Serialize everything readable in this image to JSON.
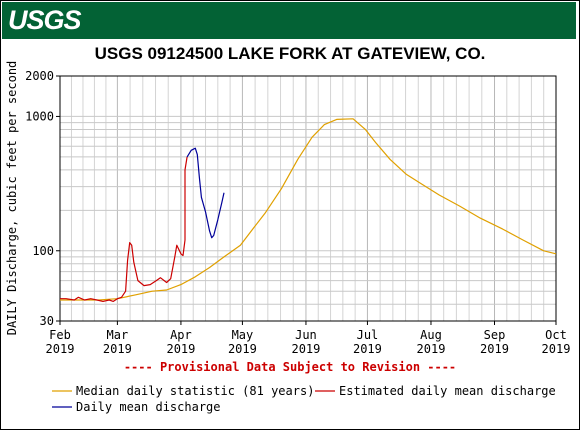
{
  "header": {
    "logo_text": "USGS",
    "brand_color": "#036235"
  },
  "chart_data": {
    "type": "line",
    "title": "USGS 09124500 LAKE FORK AT GATEVIEW, CO.",
    "ylabel": "DAILY Discharge, cubic feet per second",
    "xlabel": "",
    "yscale": "log",
    "ylim": [
      30,
      2000
    ],
    "y_ticks": [
      30,
      100,
      1000,
      2000
    ],
    "x_range": [
      "2019-02-01",
      "2019-10-01"
    ],
    "x_ticks": [
      {
        "date": "2019-02-01",
        "month": "Feb",
        "year": "2019"
      },
      {
        "date": "2019-03-01",
        "month": "Mar",
        "year": "2019"
      },
      {
        "date": "2019-04-01",
        "month": "Apr",
        "year": "2019"
      },
      {
        "date": "2019-05-01",
        "month": "May",
        "year": "2019"
      },
      {
        "date": "2019-06-01",
        "month": "Jun",
        "year": "2019"
      },
      {
        "date": "2019-07-01",
        "month": "Jul",
        "year": "2019"
      },
      {
        "date": "2019-08-01",
        "month": "Aug",
        "year": "2019"
      },
      {
        "date": "2019-09-01",
        "month": "Sep",
        "year": "2019"
      },
      {
        "date": "2019-10-01",
        "month": "Oct",
        "year": "2019"
      }
    ],
    "grid": true,
    "annotation": "---- Provisional Data Subject to Revision ----",
    "annotation_color": "#cc0000",
    "series": [
      {
        "name": "Median daily statistic (81 years)",
        "color": "#e0a000",
        "points": [
          [
            "2019-02-01",
            43
          ],
          [
            "2019-02-10",
            43
          ],
          [
            "2019-02-20",
            43
          ],
          [
            "2019-03-01",
            44
          ],
          [
            "2019-03-10",
            47
          ],
          [
            "2019-03-18",
            50
          ],
          [
            "2019-03-25",
            51
          ],
          [
            "2019-04-01",
            56
          ],
          [
            "2019-04-08",
            64
          ],
          [
            "2019-04-15",
            75
          ],
          [
            "2019-04-22",
            90
          ],
          [
            "2019-04-30",
            110
          ],
          [
            "2019-05-06",
            145
          ],
          [
            "2019-05-12",
            190
          ],
          [
            "2019-05-20",
            290
          ],
          [
            "2019-05-28",
            480
          ],
          [
            "2019-06-04",
            700
          ],
          [
            "2019-06-10",
            870
          ],
          [
            "2019-06-16",
            950
          ],
          [
            "2019-06-24",
            960
          ],
          [
            "2019-06-30",
            800
          ],
          [
            "2019-07-05",
            640
          ],
          [
            "2019-07-12",
            480
          ],
          [
            "2019-07-20",
            370
          ],
          [
            "2019-07-28",
            310
          ],
          [
            "2019-08-05",
            260
          ],
          [
            "2019-08-15",
            215
          ],
          [
            "2019-08-25",
            175
          ],
          [
            "2019-09-05",
            145
          ],
          [
            "2019-09-15",
            120
          ],
          [
            "2019-09-25",
            100
          ],
          [
            "2019-10-01",
            95
          ]
        ]
      },
      {
        "name": "Estimated daily mean discharge",
        "color": "#cc0000",
        "points": [
          [
            "2019-02-01",
            44
          ],
          [
            "2019-02-04",
            44
          ],
          [
            "2019-02-08",
            43
          ],
          [
            "2019-02-10",
            45
          ],
          [
            "2019-02-13",
            43
          ],
          [
            "2019-02-16",
            44
          ],
          [
            "2019-02-19",
            43
          ],
          [
            "2019-02-22",
            42
          ],
          [
            "2019-02-25",
            43
          ],
          [
            "2019-02-27",
            42
          ],
          [
            "2019-03-01",
            44
          ],
          [
            "2019-03-03",
            45
          ],
          [
            "2019-03-05",
            50
          ],
          [
            "2019-03-06",
            85
          ],
          [
            "2019-03-07",
            115
          ],
          [
            "2019-03-08",
            110
          ],
          [
            "2019-03-09",
            82
          ],
          [
            "2019-03-11",
            60
          ],
          [
            "2019-03-14",
            55
          ],
          [
            "2019-03-17",
            56
          ],
          [
            "2019-03-20",
            60
          ],
          [
            "2019-03-22",
            63
          ],
          [
            "2019-03-25",
            58
          ],
          [
            "2019-03-27",
            62
          ],
          [
            "2019-03-29",
            90
          ],
          [
            "2019-03-30",
            110
          ],
          [
            "2019-04-01",
            95
          ],
          [
            "2019-04-02",
            92
          ],
          [
            "2019-04-03",
            120
          ],
          [
            "2019-04-03",
            400
          ],
          [
            "2019-04-04",
            500
          ]
        ]
      },
      {
        "name": "Daily mean discharge",
        "color": "#000099",
        "points": [
          [
            "2019-04-04",
            500
          ],
          [
            "2019-04-06",
            560
          ],
          [
            "2019-04-08",
            580
          ],
          [
            "2019-04-09",
            520
          ],
          [
            "2019-04-10",
            350
          ],
          [
            "2019-04-11",
            250
          ],
          [
            "2019-04-13",
            195
          ],
          [
            "2019-04-15",
            140
          ],
          [
            "2019-04-16",
            125
          ],
          [
            "2019-04-17",
            130
          ],
          [
            "2019-04-19",
            170
          ],
          [
            "2019-04-21",
            230
          ],
          [
            "2019-04-22",
            270
          ]
        ]
      }
    ],
    "legend": {
      "placement": "bottom",
      "entries": [
        "Median daily statistic (81 years)",
        "Estimated daily mean discharge",
        "Daily mean discharge"
      ]
    }
  }
}
